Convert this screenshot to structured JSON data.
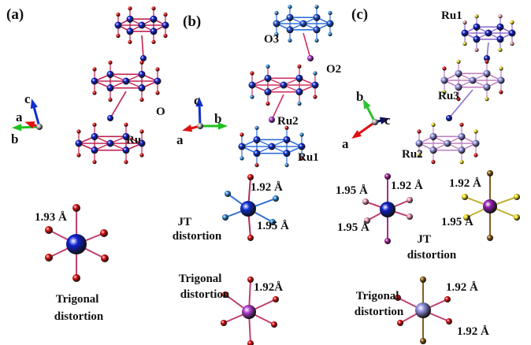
{
  "panels": [
    {
      "label": "(a)",
      "axes": {
        "c": "c",
        "a": "a",
        "b": "b"
      },
      "atom_labels": [
        "O",
        "Ru"
      ],
      "bond_labels": [
        "1.93 Å"
      ],
      "captions": [
        [
          "Trigonal",
          "distortion"
        ]
      ]
    },
    {
      "label": "(b)",
      "axes": {
        "c": "c",
        "a": "a",
        "b": "b"
      },
      "atom_labels": [
        "O3",
        "O2",
        "Ru2",
        "Ru1"
      ],
      "bond_labels": [
        "1.92 Å",
        "1.95 Å",
        "1.92Å"
      ],
      "captions": [
        [
          "JT",
          "distortion"
        ],
        [
          "Trigonal",
          "distortion"
        ]
      ]
    },
    {
      "label": "(c)",
      "axes": {
        "b": "b",
        "c": "c",
        "a": "a"
      },
      "atom_labels": [
        "Ru1",
        "Ru3",
        "Ru2"
      ],
      "bond_labels": [
        "1.95 Å",
        "1.92 Å",
        "1.95 Å",
        "1.92 Å",
        "1.95 Å",
        "1.92 Å",
        "1.92 Å"
      ],
      "captions": [
        [
          "JT",
          "distortion"
        ],
        [
          "Trigonal",
          "distortion"
        ]
      ]
    }
  ]
}
